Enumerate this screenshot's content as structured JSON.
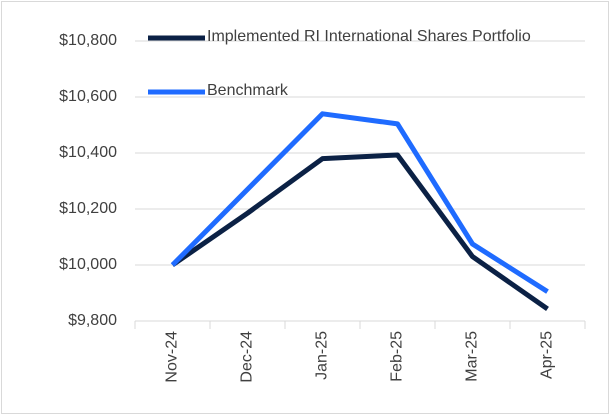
{
  "chart_data": {
    "type": "line",
    "categories": [
      "Nov-24",
      "Dec-24",
      "Jan-25",
      "Feb-25",
      "Mar-25",
      "Apr-25"
    ],
    "series": [
      {
        "name": "Implemented RI International Shares Portfolio",
        "color": "#0b2145",
        "values": [
          10000,
          10185,
          10380,
          10393,
          10030,
          9843
        ]
      },
      {
        "name": "Benchmark",
        "color": "#1f6bff",
        "values": [
          10000,
          10270,
          10540,
          10504,
          10075,
          9905
        ]
      }
    ],
    "ylim": [
      9800,
      10800
    ],
    "yticks": [
      {
        "value": 9800,
        "label": "$9,800"
      },
      {
        "value": 10000,
        "label": "$10,000"
      },
      {
        "value": 10200,
        "label": "$10,200"
      },
      {
        "value": 10400,
        "label": "$10,400"
      },
      {
        "value": 10600,
        "label": "$10,600"
      },
      {
        "value": 10800,
        "label": "$10,800"
      }
    ],
    "grid": true,
    "legend": "top-left"
  }
}
